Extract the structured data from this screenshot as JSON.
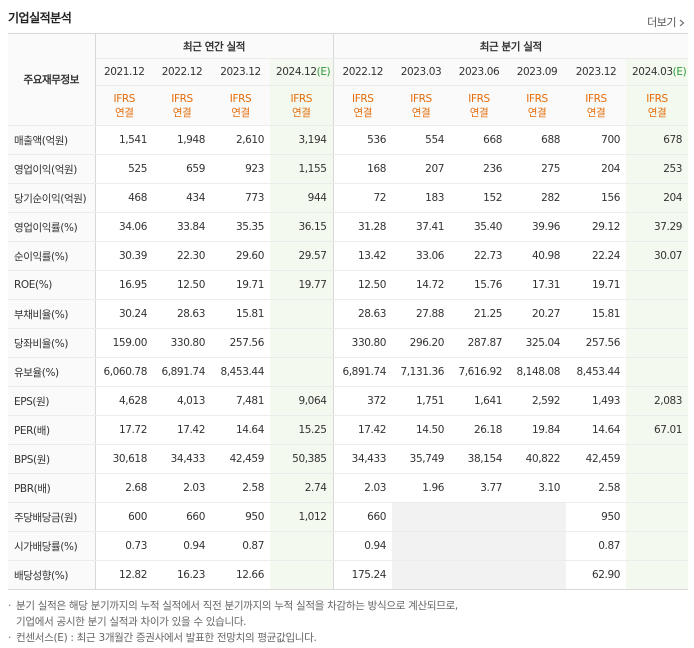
{
  "header": {
    "title": "기업실적분석",
    "more": "더보기"
  },
  "table": {
    "row_header": "주요재무정보",
    "groups": [
      {
        "label": "최근 연간 실적",
        "span": 4
      },
      {
        "label": "최근 분기 실적",
        "span": 6
      }
    ],
    "columns": [
      {
        "period": "2021.12",
        "basis": "IFRS",
        "consolidation": "연결"
      },
      {
        "period": "2022.12",
        "basis": "IFRS",
        "consolidation": "연결"
      },
      {
        "period": "2023.12",
        "basis": "IFRS",
        "consolidation": "연결"
      },
      {
        "period": "2024.12",
        "estimate": "(E)",
        "basis": "IFRS",
        "consolidation": "연결"
      },
      {
        "period": "2022.12",
        "basis": "IFRS",
        "consolidation": "연결"
      },
      {
        "period": "2023.03",
        "basis": "IFRS",
        "consolidation": "연결"
      },
      {
        "period": "2023.06",
        "basis": "IFRS",
        "consolidation": "연결"
      },
      {
        "period": "2023.09",
        "basis": "IFRS",
        "consolidation": "연결"
      },
      {
        "period": "2023.12",
        "basis": "IFRS",
        "consolidation": "연결"
      },
      {
        "period": "2024.03",
        "estimate": "(E)",
        "basis": "IFRS",
        "consolidation": "연결"
      }
    ],
    "rows": [
      {
        "label": "매출액(억원)",
        "values": [
          "1,541",
          "1,948",
          "2,610",
          "3,194",
          "536",
          "554",
          "668",
          "688",
          "700",
          "678"
        ]
      },
      {
        "label": "영업이익(억원)",
        "values": [
          "525",
          "659",
          "923",
          "1,155",
          "168",
          "207",
          "236",
          "275",
          "204",
          "253"
        ]
      },
      {
        "label": "당기순이익(억원)",
        "values": [
          "468",
          "434",
          "773",
          "944",
          "72",
          "183",
          "152",
          "282",
          "156",
          "204"
        ]
      },
      {
        "label": "영업이익률(%)",
        "values": [
          "34.06",
          "33.84",
          "35.35",
          "36.15",
          "31.28",
          "37.41",
          "35.40",
          "39.96",
          "29.12",
          "37.29"
        ]
      },
      {
        "label": "순이익률(%)",
        "values": [
          "30.39",
          "22.30",
          "29.60",
          "29.57",
          "13.42",
          "33.06",
          "22.73",
          "40.98",
          "22.24",
          "30.07"
        ]
      },
      {
        "label": "ROE(%)",
        "values": [
          "16.95",
          "12.50",
          "19.71",
          "19.77",
          "12.50",
          "14.72",
          "15.76",
          "17.31",
          "19.71",
          null
        ]
      },
      {
        "label": "부채비율(%)",
        "values": [
          "30.24",
          "28.63",
          "15.81",
          null,
          "28.63",
          "27.88",
          "21.25",
          "20.27",
          "15.81",
          null
        ]
      },
      {
        "label": "당좌비율(%)",
        "values": [
          "159.00",
          "330.80",
          "257.56",
          null,
          "330.80",
          "296.20",
          "287.87",
          "325.04",
          "257.56",
          null
        ]
      },
      {
        "label": "유보율(%)",
        "values": [
          "6,060.78",
          "6,891.74",
          "8,453.44",
          null,
          "6,891.74",
          "7,131.36",
          "7,616.92",
          "8,148.08",
          "8,453.44",
          null
        ]
      },
      {
        "label": "EPS(원)",
        "values": [
          "4,628",
          "4,013",
          "7,481",
          "9,064",
          "372",
          "1,751",
          "1,641",
          "2,592",
          "1,493",
          "2,083"
        ]
      },
      {
        "label": "PER(배)",
        "values": [
          "17.72",
          "17.42",
          "14.64",
          "15.25",
          "17.42",
          "14.50",
          "26.18",
          "19.84",
          "14.64",
          "67.01"
        ]
      },
      {
        "label": "BPS(원)",
        "values": [
          "30,618",
          "34,433",
          "42,459",
          "50,385",
          "34,433",
          "35,749",
          "38,154",
          "40,822",
          "42,459",
          null
        ]
      },
      {
        "label": "PBR(배)",
        "values": [
          "2.68",
          "2.03",
          "2.58",
          "2.74",
          "2.03",
          "1.96",
          "3.77",
          "3.10",
          "2.58",
          null
        ]
      },
      {
        "label": "주당배당금(원)",
        "values": [
          "600",
          "660",
          "950",
          "1,012",
          "660",
          null,
          null,
          null,
          "950",
          null
        ]
      },
      {
        "label": "시가배당률(%)",
        "values": [
          "0.73",
          "0.94",
          "0.87",
          null,
          "0.94",
          null,
          null,
          null,
          "0.87",
          null
        ]
      },
      {
        "label": "배당성향(%)",
        "values": [
          "12.82",
          "16.23",
          "12.66",
          null,
          "175.24",
          null,
          null,
          null,
          "62.90",
          null
        ]
      }
    ]
  },
  "notes": [
    [
      "분기 실적은 해당 분기까지의 누적 실적에서 직전 분기까지의 누적 실적을 차감하는 방식으로 계산되므로,",
      "기업에서 공시한 분기 실적과 차이가 있을 수 있습니다."
    ],
    [
      "컨센서스(E) : 최근 3개월간 증권사에서 발표한 전망치의 평균값입니다."
    ]
  ]
}
